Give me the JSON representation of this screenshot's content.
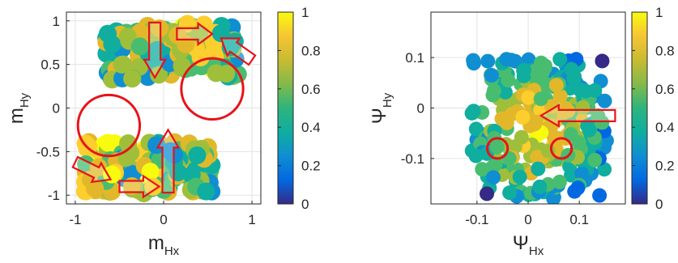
{
  "chart_data": [
    {
      "type": "scatter",
      "title": "",
      "xlabel": {
        "base": "m",
        "sub": "Hx"
      },
      "ylabel": {
        "base": "m",
        "sub": "Hy"
      },
      "xlim": [
        -1.1,
        1.1
      ],
      "ylim": [
        -1.1,
        1.1
      ],
      "xticks": [
        "-1",
        "0",
        "1"
      ],
      "xtick_values": [
        -1,
        0,
        1
      ],
      "yticks": [
        "1",
        "0.5",
        "0",
        "-0.5",
        "-1"
      ],
      "ytick_values": [
        1,
        0.5,
        0,
        -0.5,
        -1
      ],
      "grid": true,
      "colorbar": {
        "ticks": [
          "1",
          "0.8",
          "0.6",
          "0.4",
          "0.2",
          "0"
        ],
        "tick_values": [
          1,
          0.8,
          0.6,
          0.4,
          0.2,
          0
        ],
        "colormap": "parula"
      },
      "point_clusters": [
        {
          "x_range": [
            -0.65,
            0.85
          ],
          "y_range": [
            0.35,
            0.95
          ],
          "note": "upper band"
        },
        {
          "x_range": [
            -0.9,
            0.55
          ],
          "y_range": [
            -0.98,
            -0.38
          ],
          "note": "lower band"
        }
      ],
      "annotations": [
        {
          "kind": "circle",
          "cx": 0.55,
          "cy": 0.22,
          "r": 0.35
        },
        {
          "kind": "circle",
          "cx": -0.62,
          "cy": -0.2,
          "r": 0.35
        },
        {
          "kind": "arrow",
          "from": [
            -0.1,
            0.98
          ],
          "to": [
            -0.1,
            0.35
          ],
          "dir": "down"
        },
        {
          "kind": "arrow",
          "from": [
            0.05,
            -0.97
          ],
          "to": [
            0.05,
            -0.25
          ],
          "dir": "up"
        },
        {
          "kind": "arrow",
          "from": [
            0.15,
            0.85
          ],
          "to": [
            0.55,
            0.85
          ],
          "dir": "right"
        },
        {
          "kind": "arrow",
          "from": [
            -0.5,
            -0.9
          ],
          "to": [
            -0.05,
            -0.9
          ],
          "dir": "right"
        },
        {
          "kind": "arrow",
          "from": [
            1.0,
            0.55
          ],
          "to": [
            0.65,
            0.8
          ],
          "dir": "up-left"
        },
        {
          "kind": "arrow",
          "from": [
            -1.0,
            -0.62
          ],
          "to": [
            -0.6,
            -0.82
          ],
          "dir": "down-right"
        }
      ]
    },
    {
      "type": "scatter",
      "title": "",
      "xlabel": {
        "base": "Ψ",
        "sub": "Hx"
      },
      "ylabel": {
        "base": "Ψ",
        "sub": "Hy"
      },
      "xlim": [
        -0.19,
        0.19
      ],
      "ylim": [
        -0.19,
        0.19
      ],
      "xticks": [
        "-0.1",
        "0",
        "0.1"
      ],
      "xtick_values": [
        -0.1,
        0,
        0.1
      ],
      "yticks": [
        "0.1",
        "0",
        "-0.1"
      ],
      "ytick_values": [
        0.1,
        0,
        -0.1
      ],
      "grid": true,
      "colorbar": {
        "ticks": [
          "1",
          "0.8",
          "0.6",
          "0.4",
          "0.2",
          "0"
        ],
        "tick_values": [
          1,
          0.8,
          0.6,
          0.4,
          0.2,
          0
        ],
        "colormap": "parula"
      },
      "point_clusters": [
        {
          "x_range": [
            -0.11,
            0.16
          ],
          "y_range": [
            -0.18,
            0.1
          ],
          "note": "central cloud"
        }
      ],
      "annotations": [
        {
          "kind": "circle",
          "cx": -0.06,
          "cy": -0.08,
          "r": 0.02
        },
        {
          "kind": "circle",
          "cx": 0.065,
          "cy": -0.08,
          "r": 0.02
        },
        {
          "kind": "arrow",
          "from": [
            0.17,
            -0.015
          ],
          "to": [
            0.025,
            -0.015
          ],
          "dir": "left"
        }
      ]
    }
  ],
  "colors": {
    "annotation": "#e8121a",
    "axis": "#262626",
    "grid": "#e3e3e3",
    "parula": [
      "#352a87",
      "#0268e1",
      "#108ed2",
      "#0fae9f",
      "#49bd6f",
      "#9fbf3b",
      "#e2b82a",
      "#fcce2e",
      "#f9fb0e"
    ]
  }
}
